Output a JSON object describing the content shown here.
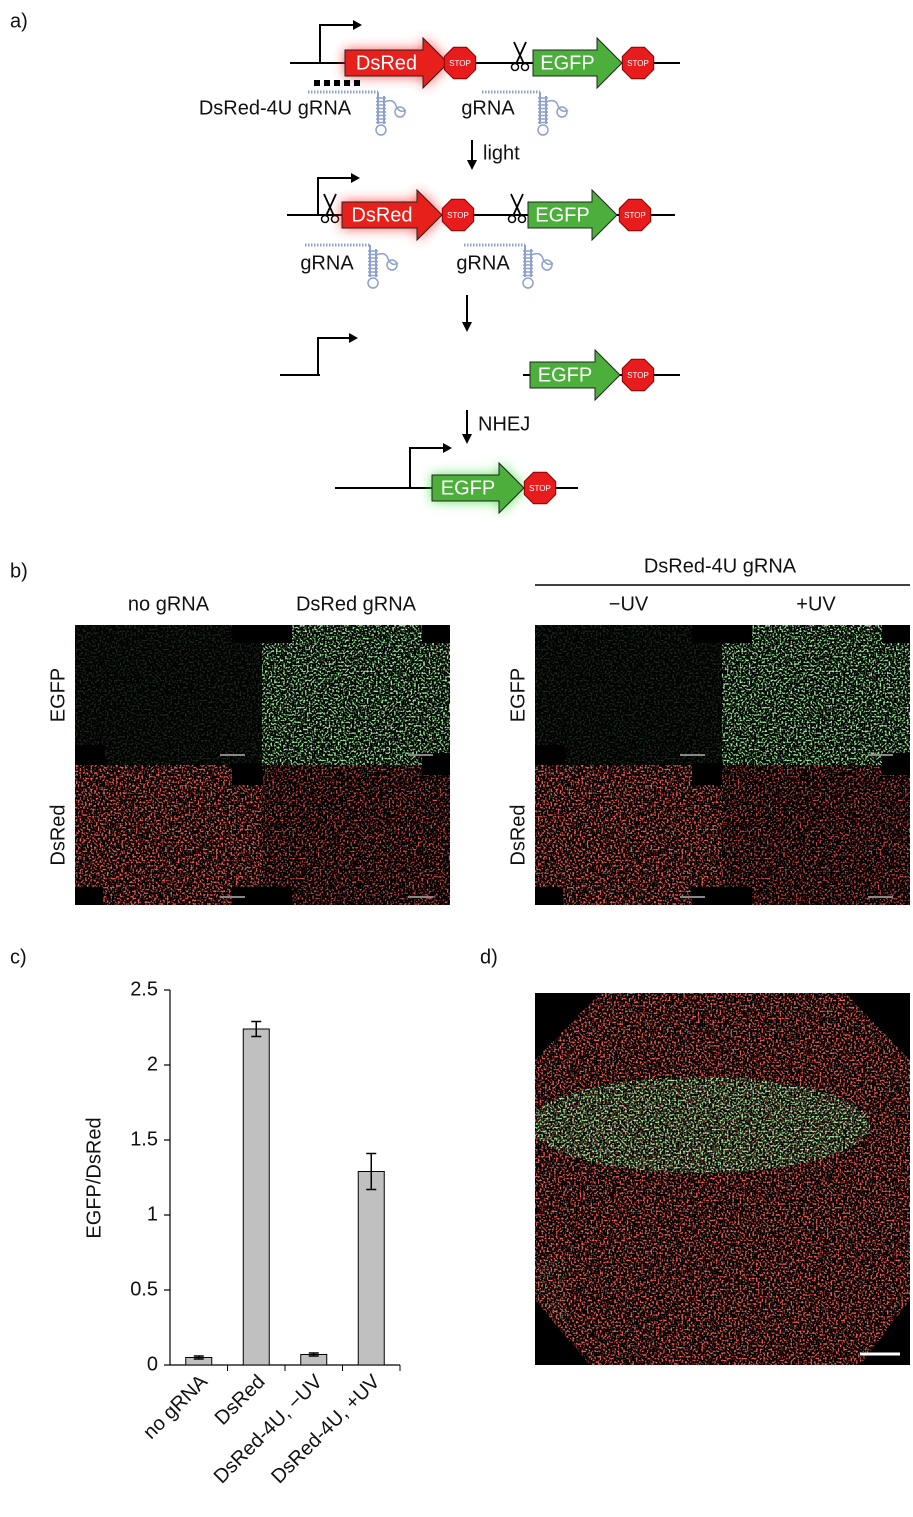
{
  "panel_labels": [
    "a)",
    "b)",
    "c)",
    "d)"
  ],
  "scheme": {
    "dsred": "DsRed",
    "egfp": "EGFP",
    "stop": "STOP",
    "grna": "gRNA",
    "dsred_4u_grna": "DsRed-4U gRNA",
    "light": "light",
    "nhej": "NHEJ"
  },
  "images": {
    "columns_left": [
      "no gRNA",
      "DsRed gRNA"
    ],
    "group_right": "DsRed-4U gRNA",
    "columns_right": [
      "−UV",
      "+UV"
    ],
    "rows": [
      "EGFP",
      "DsRed"
    ]
  },
  "chart_data": {
    "type": "bar",
    "ylabel": "EGFP/DsRed",
    "categories": [
      "no gRNA",
      "DsRed",
      "DsRed-4U, −UV",
      "DsRed-4U, +UV"
    ],
    "values": [
      0.05,
      2.24,
      0.07,
      1.29
    ],
    "errors": [
      0.01,
      0.05,
      0.01,
      0.12
    ],
    "color": "#c0c0c0",
    "ylim": [
      0,
      2.5
    ],
    "yticks": [
      0,
      0.5,
      1,
      1.5,
      2,
      2.5
    ]
  }
}
